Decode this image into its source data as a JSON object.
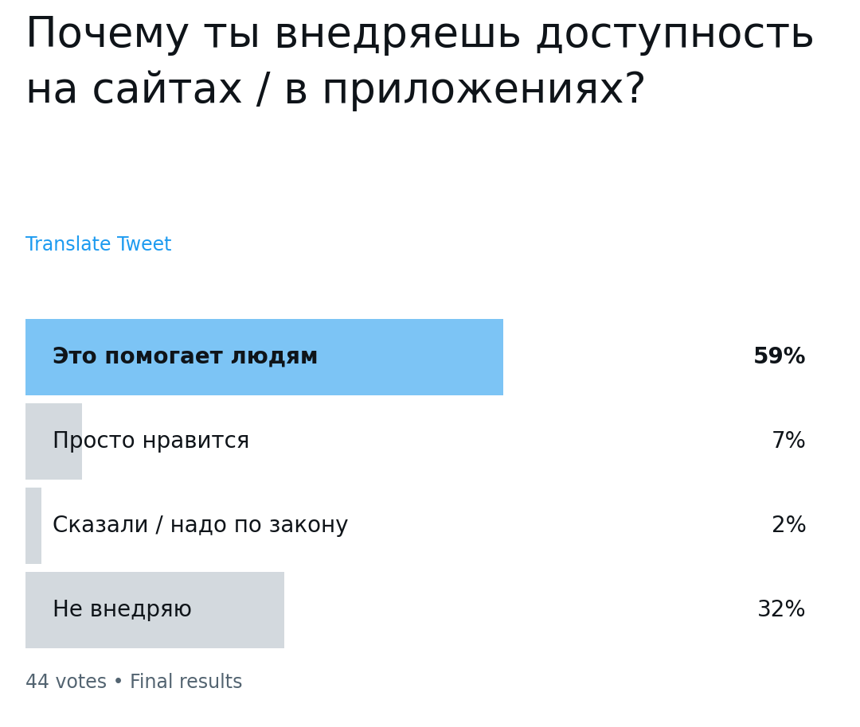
{
  "chart_data": {
    "type": "bar",
    "orientation": "horizontal",
    "title": "Почему ты внедряешь доступность на сайтах / в приложениях?",
    "subtitle": "Translate Tweet",
    "categories": [
      "Это помогает людям",
      "Просто нравится",
      "Сказали / надо по закону",
      "Не внедряю"
    ],
    "values": [
      59,
      7,
      2,
      32
    ],
    "value_labels": [
      "59%",
      "7%",
      "2%",
      "32%"
    ],
    "colors": [
      "#7cc4f5",
      "#d3d9de",
      "#d3d9de",
      "#d3d9de"
    ],
    "xlim": [
      0,
      100
    ],
    "data_labels": true,
    "tick_labels": false,
    "annotations": [
      "44 votes • Final results"
    ]
  }
}
